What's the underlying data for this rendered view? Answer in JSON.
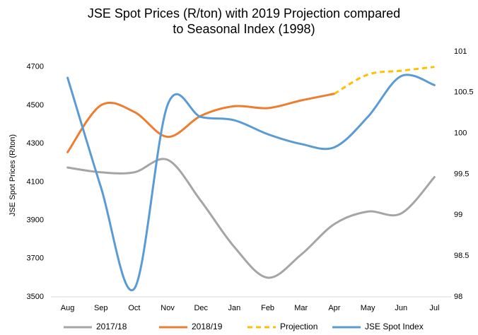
{
  "chart_data": {
    "type": "line",
    "title": "JSE Spot Prices (R/ton) with 2019 Projection compared to Seasonal Index (1998)",
    "y_label": "JSE Spot Prices (R/ton)",
    "categories": [
      "Aug",
      "Sep",
      "Oct",
      "Nov",
      "Dec",
      "Jan",
      "Feb",
      "Mar",
      "Apr",
      "May",
      "Jun",
      "Jul"
    ],
    "series": [
      {
        "name": "2017/18",
        "color": "#a5a5a5",
        "style": "solid",
        "values": [
          4175,
          4150,
          4150,
          4215,
          4000,
          3760,
          3600,
          3720,
          3880,
          3945,
          3935,
          4125
        ]
      },
      {
        "name": "2018/19",
        "color": "#ed7d31",
        "style": "solid",
        "values": [
          4255,
          4500,
          4465,
          4335,
          4445,
          4495,
          4485,
          4525,
          4560,
          null,
          null,
          null
        ]
      },
      {
        "name": "Projection",
        "color": "#ffc000",
        "style": "dashed",
        "values": [
          null,
          null,
          null,
          null,
          null,
          null,
          null,
          null,
          4560,
          4660,
          4680,
          4700
        ]
      },
      {
        "name": "JSE Spot Index",
        "color": "#5b9bd5",
        "style": "solid",
        "axis": "y2",
        "values": [
          100.68,
          99.34,
          98.1,
          100.35,
          100.2,
          100.16,
          99.99,
          99.87,
          99.83,
          100.2,
          100.7,
          100.59
        ]
      }
    ],
    "ylim": [
      3500,
      4780
    ],
    "yticks": [
      3500,
      3700,
      3900,
      4100,
      4300,
      4500,
      4700
    ],
    "y2lim": [
      98,
      101
    ],
    "y2ticks": [
      98,
      98.5,
      99,
      99.5,
      100,
      100.5,
      101
    ],
    "legend": "bottom"
  }
}
